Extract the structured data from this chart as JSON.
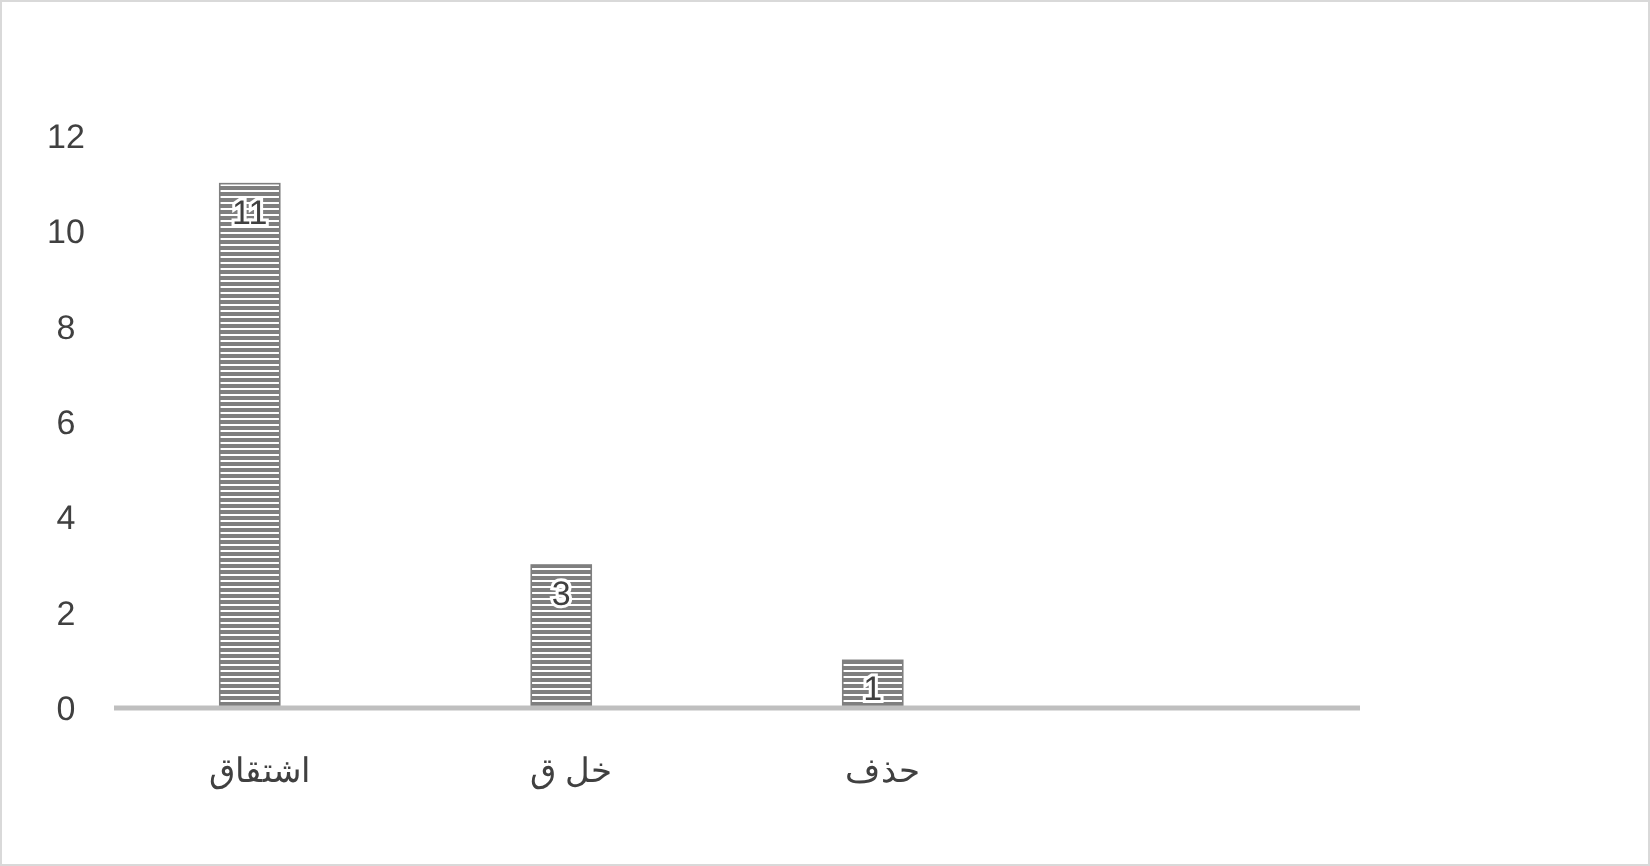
{
  "chart_data": {
    "type": "bar",
    "categories": [
      "اشتقاق",
      "خل ق",
      "حذف",
      null
    ],
    "values": [
      11,
      3,
      1,
      null
    ],
    "color": "#7f7f7f",
    "ylim": [
      0,
      12
    ],
    "yticks": [
      0,
      2,
      4,
      6,
      8,
      10,
      12
    ],
    "data_labels": true
  }
}
